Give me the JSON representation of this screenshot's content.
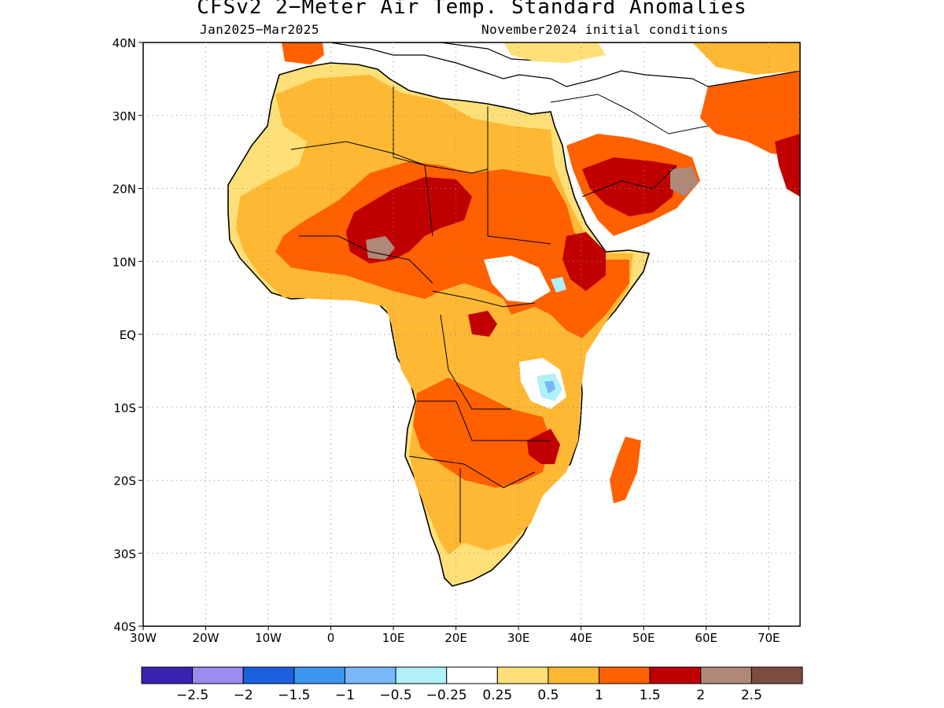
{
  "title": "CFSv2 2−Meter Air Temp. Standard Anomalies",
  "subtitle_left": "Jan2025−Mar2025",
  "subtitle_right": "November2024 initial conditions",
  "axes": {
    "lat_labels": [
      "40N",
      "30N",
      "20N",
      "10N",
      "EQ",
      "10S",
      "20S",
      "30S",
      "40S"
    ],
    "lon_labels": [
      "30W",
      "20W",
      "10W",
      "0",
      "10E",
      "20E",
      "30E",
      "40E",
      "50E",
      "60E",
      "70E"
    ]
  },
  "colorbar": {
    "colors": [
      "#3a22b0",
      "#9c8cf0",
      "#1c60e0",
      "#3c96f0",
      "#78b8f8",
      "#b0f0f8",
      "#ffffff",
      "#ffe078",
      "#ffb834",
      "#ff6000",
      "#c00000",
      "#b08878",
      "#7c4c40"
    ],
    "labels": [
      "−2.5",
      "−2",
      "−1.5",
      "−1",
      "−0.5",
      "−0.25",
      "0.25",
      "0.5",
      "1",
      "1.5",
      "2",
      "2.5"
    ]
  },
  "chart_data": {
    "type": "map",
    "variable": "2-meter air temperature standard anomaly",
    "lat_range": [
      -40,
      40
    ],
    "lon_range": [
      -30,
      75
    ],
    "levels": [
      -2.5,
      -2,
      -1.5,
      -1,
      -0.5,
      -0.25,
      0.25,
      0.5,
      1,
      1.5,
      2,
      2.5
    ]
  }
}
